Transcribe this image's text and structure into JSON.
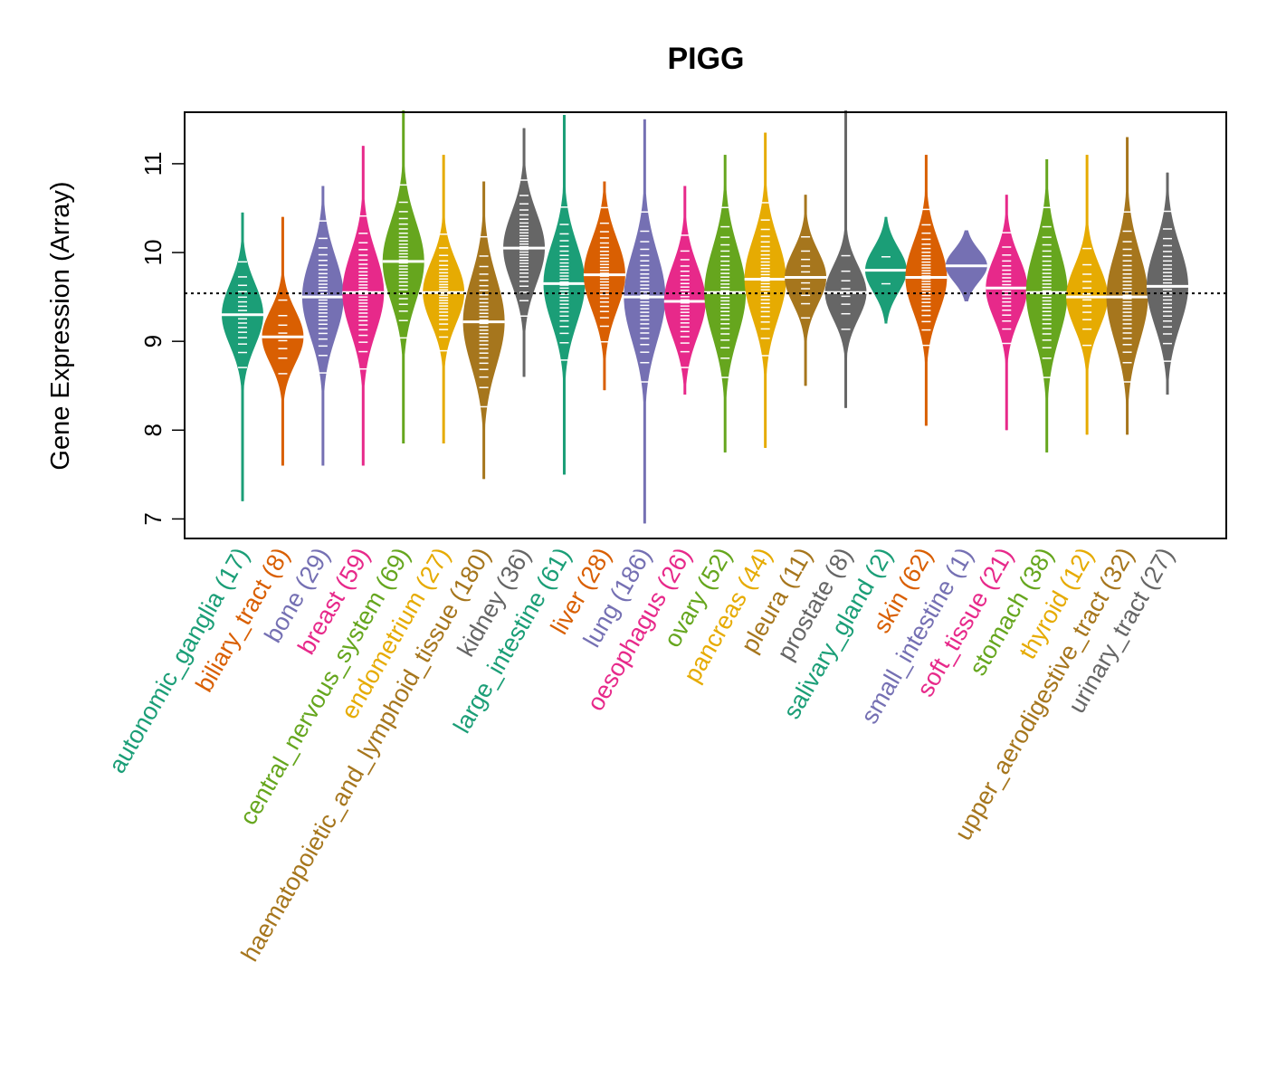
{
  "chart_data": {
    "type": "beanplot",
    "title": "PIGG",
    "xlabel": "",
    "ylabel": "Gene Expression (Array)",
    "ylim": [
      6.78,
      11.58
    ],
    "yticks": [
      7,
      8,
      9,
      10,
      11
    ],
    "overall_median": 9.54,
    "palette": [
      "#1B9E77",
      "#D95F02",
      "#7570B3",
      "#E7298A",
      "#66A61E",
      "#E6AB02",
      "#A6761D",
      "#666666"
    ],
    "categories": [
      {
        "label": "autonomic_ganglia (17)",
        "min": 7.2,
        "max": 10.45,
        "median": 9.3,
        "spread": 0.35
      },
      {
        "label": "biliary_tract (8)",
        "min": 7.6,
        "max": 10.4,
        "median": 9.05,
        "spread": 0.3
      },
      {
        "label": "bone (29)",
        "min": 7.6,
        "max": 10.75,
        "median": 9.5,
        "spread": 0.45
      },
      {
        "label": "breast (59)",
        "min": 7.6,
        "max": 11.2,
        "median": 9.55,
        "spread": 0.45
      },
      {
        "label": "central_nervous_system (69)",
        "min": 7.85,
        "max": 11.6,
        "median": 9.9,
        "spread": 0.45
      },
      {
        "label": "endometrium (27)",
        "min": 7.85,
        "max": 11.1,
        "median": 9.55,
        "spread": 0.35
      },
      {
        "label": "haematopoietic_and_lymphoid_tissue (180)",
        "min": 7.45,
        "max": 10.8,
        "median": 9.22,
        "spread": 0.5
      },
      {
        "label": "kidney (36)",
        "min": 8.6,
        "max": 11.4,
        "median": 10.05,
        "spread": 0.4
      },
      {
        "label": "large_intestine (61)",
        "min": 7.5,
        "max": 11.55,
        "median": 9.65,
        "spread": 0.45
      },
      {
        "label": "liver (28)",
        "min": 8.45,
        "max": 10.8,
        "median": 9.75,
        "spread": 0.4
      },
      {
        "label": "lung (186)",
        "min": 6.95,
        "max": 11.5,
        "median": 9.5,
        "spread": 0.5
      },
      {
        "label": "oesophagus (26)",
        "min": 8.4,
        "max": 10.75,
        "median": 9.45,
        "spread": 0.4
      },
      {
        "label": "ovary (52)",
        "min": 7.75,
        "max": 11.1,
        "median": 9.55,
        "spread": 0.5
      },
      {
        "label": "pancreas (44)",
        "min": 7.8,
        "max": 11.35,
        "median": 9.7,
        "spread": 0.45
      },
      {
        "label": "pleura (11)",
        "min": 8.5,
        "max": 10.65,
        "median": 9.72,
        "spread": 0.3
      },
      {
        "label": "prostate (8)",
        "min": 8.25,
        "max": 11.6,
        "median": 9.55,
        "spread": 0.3
      },
      {
        "label": "salivary_gland (2)",
        "min": 9.2,
        "max": 10.4,
        "median": 9.8,
        "spread": 0.25
      },
      {
        "label": "skin (62)",
        "min": 8.05,
        "max": 11.1,
        "median": 9.72,
        "spread": 0.4
      },
      {
        "label": "small_intestine (1)",
        "min": 9.45,
        "max": 10.25,
        "median": 9.85,
        "spread": 0.18
      },
      {
        "label": "soft_tissue (21)",
        "min": 8.0,
        "max": 10.65,
        "median": 9.6,
        "spread": 0.35
      },
      {
        "label": "stomach (38)",
        "min": 7.75,
        "max": 11.05,
        "median": 9.55,
        "spread": 0.5
      },
      {
        "label": "thyroid (12)",
        "min": 7.95,
        "max": 11.1,
        "median": 9.5,
        "spread": 0.35
      },
      {
        "label": "upper_aerodigestive_tract (32)",
        "min": 7.95,
        "max": 11.3,
        "median": 9.5,
        "spread": 0.5
      },
      {
        "label": "urinary_tract (27)",
        "min": 8.4,
        "max": 10.9,
        "median": 9.62,
        "spread": 0.45
      }
    ]
  }
}
